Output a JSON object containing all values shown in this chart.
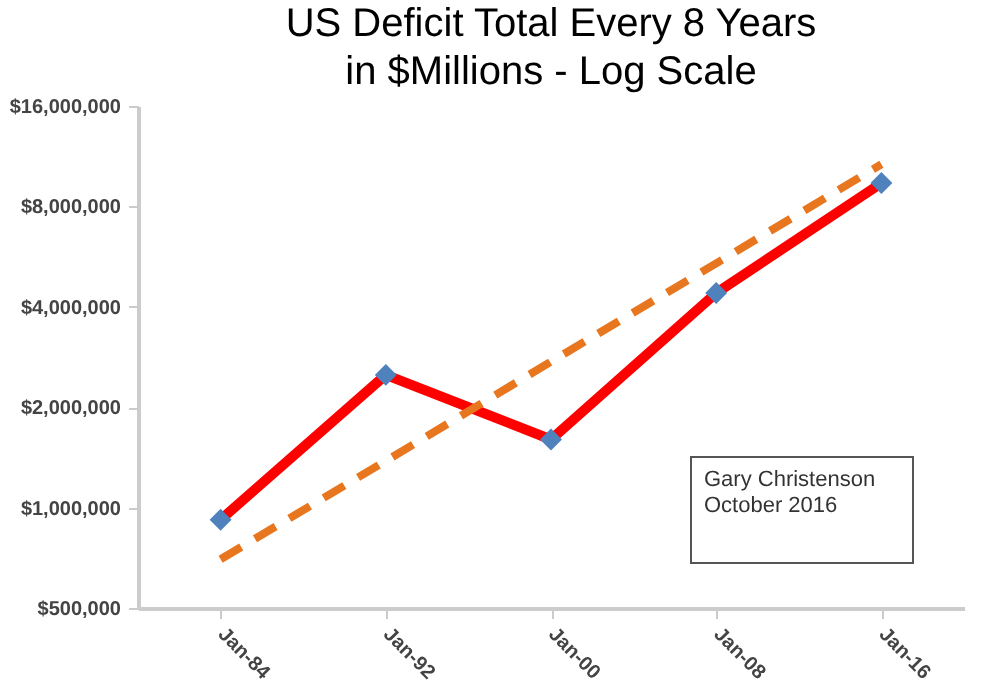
{
  "chart_data": {
    "type": "line",
    "title": "US Deficit Total Every 8 Years\nin $Millions - Log Scale",
    "categories": [
      "Jan-84",
      "Jan-92",
      "Jan-00",
      "Jan-08",
      "Jan-16"
    ],
    "series": [
      {
        "color": "#ff0000",
        "values": [
          920000,
          2500000,
          1600000,
          4400000,
          9400000
        ],
        "marker": "none"
      },
      {
        "type": "scatter",
        "color": "#4f81bd",
        "values": [
          920000,
          2500000,
          1600000,
          4400000,
          9400000
        ],
        "marker": "diamond"
      },
      {
        "type": "line",
        "color": "#e8761e",
        "values": [
          700000,
          1380000,
          2740000,
          5400000,
          10700000
        ],
        "line_style": "dashed",
        "marker": "none"
      }
    ],
    "log": true,
    "ylim": [
      500000,
      16000000
    ],
    "yticks": [
      {
        "value": 500000,
        "label": "$500,000"
      },
      {
        "value": 1000000,
        "label": "$1,000,000"
      },
      {
        "value": 2000000,
        "label": "$2,000,000"
      },
      {
        "value": 4000000,
        "label": "$4,000,000"
      },
      {
        "value": 8000000,
        "label": "$8,000,000"
      },
      {
        "value": 16000000,
        "label": "$16,000,000"
      }
    ],
    "grid": false,
    "annotations": [
      "Gary Christenson",
      "October 2016"
    ]
  }
}
